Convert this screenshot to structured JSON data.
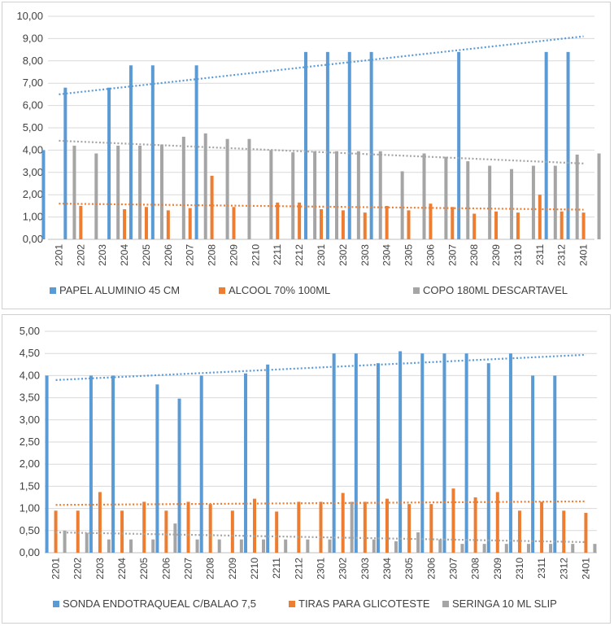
{
  "chart_data": [
    {
      "type": "bar",
      "title": "",
      "categories": [
        "2201",
        "2202",
        "2203",
        "2204",
        "2205",
        "2206",
        "2207",
        "2208",
        "2209",
        "2210",
        "2211",
        "2212",
        "2301",
        "2302",
        "2303",
        "2304",
        "2305",
        "2306",
        "2307",
        "2308",
        "2309",
        "2310",
        "2311",
        "2312",
        "2401"
      ],
      "ylim": [
        0,
        10
      ],
      "ytick_step": 1,
      "ytick_labels": [
        "0,00",
        "1,00",
        "2,00",
        "3,00",
        "4,00",
        "5,00",
        "6,00",
        "7,00",
        "8,00",
        "9,00",
        "10,00"
      ],
      "grid": true,
      "legend_position": "bottom",
      "series": [
        {
          "name": "PAPEL ALUMINIO 45 CM",
          "color": "#5b9bd5",
          "values": [
            4.0,
            6.8,
            0,
            6.8,
            7.8,
            7.8,
            0,
            7.8,
            0,
            0,
            0,
            0,
            8.4,
            8.4,
            8.4,
            8.4,
            0,
            0,
            0,
            8.4,
            0,
            0,
            0,
            8.4,
            8.4
          ],
          "trend": [
            6.5,
            9.1
          ]
        },
        {
          "name": "ALCOOL 70% 100ML",
          "color": "#ed7d31",
          "values": [
            0,
            1.5,
            0,
            1.35,
            1.45,
            1.3,
            1.4,
            2.85,
            1.45,
            0,
            1.65,
            1.65,
            1.35,
            1.3,
            1.2,
            1.5,
            1.3,
            1.6,
            1.45,
            1.15,
            1.25,
            1.2,
            2.0,
            1.25,
            1.2
          ],
          "trend": [
            1.6,
            1.33
          ]
        },
        {
          "name": "COPO 180ML DESCARTAVEL",
          "color": "#a5a5a5",
          "values": [
            4.2,
            3.85,
            4.2,
            4.2,
            4.25,
            4.6,
            4.75,
            4.5,
            4.5,
            4.0,
            3.9,
            3.95,
            3.95,
            3.95,
            3.95,
            3.05,
            3.85,
            3.7,
            3.5,
            3.3,
            3.15,
            3.3,
            3.3,
            3.8,
            3.85
          ],
          "trend": [
            4.42,
            3.4
          ]
        }
      ]
    },
    {
      "type": "bar",
      "title": "",
      "categories": [
        "2201",
        "2202",
        "2203",
        "2204",
        "2205",
        "2206",
        "2207",
        "2208",
        "2209",
        "2210",
        "2211",
        "2212",
        "2301",
        "2302",
        "2303",
        "2304",
        "2305",
        "2306",
        "2307",
        "2308",
        "2309",
        "2310",
        "2311",
        "2312",
        "2401"
      ],
      "ylim": [
        0,
        5
      ],
      "ytick_step": 0.5,
      "ytick_labels": [
        "0,00",
        "0,50",
        "1,00",
        "1,50",
        "2,00",
        "2,50",
        "3,00",
        "3,50",
        "4,00",
        "4,50",
        "5,00"
      ],
      "grid": true,
      "legend_position": "bottom",
      "series": [
        {
          "name": "SONDA ENDOTRAQUEAL C/BALAO 7,5",
          "color": "#5b9bd5",
          "values": [
            4.0,
            0,
            4.0,
            4.0,
            0,
            3.8,
            3.48,
            4.0,
            0,
            4.05,
            4.25,
            0,
            0,
            4.5,
            4.5,
            4.28,
            4.55,
            4.5,
            4.5,
            4.5,
            4.28,
            4.5,
            4.0,
            4.0,
            0
          ],
          "trend": [
            3.9,
            4.47
          ]
        },
        {
          "name": "TIRAS PARA GLICOTESTE",
          "color": "#ed7d31",
          "values": [
            0.95,
            0.95,
            1.37,
            0.95,
            1.15,
            0.95,
            1.15,
            1.1,
            0.95,
            1.22,
            0.93,
            1.15,
            1.15,
            1.35,
            1.15,
            1.22,
            1.1,
            1.1,
            1.45,
            1.25,
            1.37,
            0.95,
            1.15,
            0.95,
            0.9
          ],
          "trend": [
            1.08,
            1.16
          ]
        },
        {
          "name": "SERINGA 10 ML  SLIP",
          "color": "#a5a5a5",
          "values": [
            0.5,
            0.45,
            0.3,
            0.3,
            0.3,
            0.66,
            0.3,
            0.3,
            0.3,
            0.3,
            0.3,
            0.3,
            0.3,
            1.15,
            0.3,
            0.26,
            0.46,
            0.3,
            0.2,
            0.2,
            0.2,
            0.2,
            0.2,
            0.2,
            0.2
          ],
          "trend": [
            0.46,
            0.24
          ]
        }
      ]
    }
  ]
}
